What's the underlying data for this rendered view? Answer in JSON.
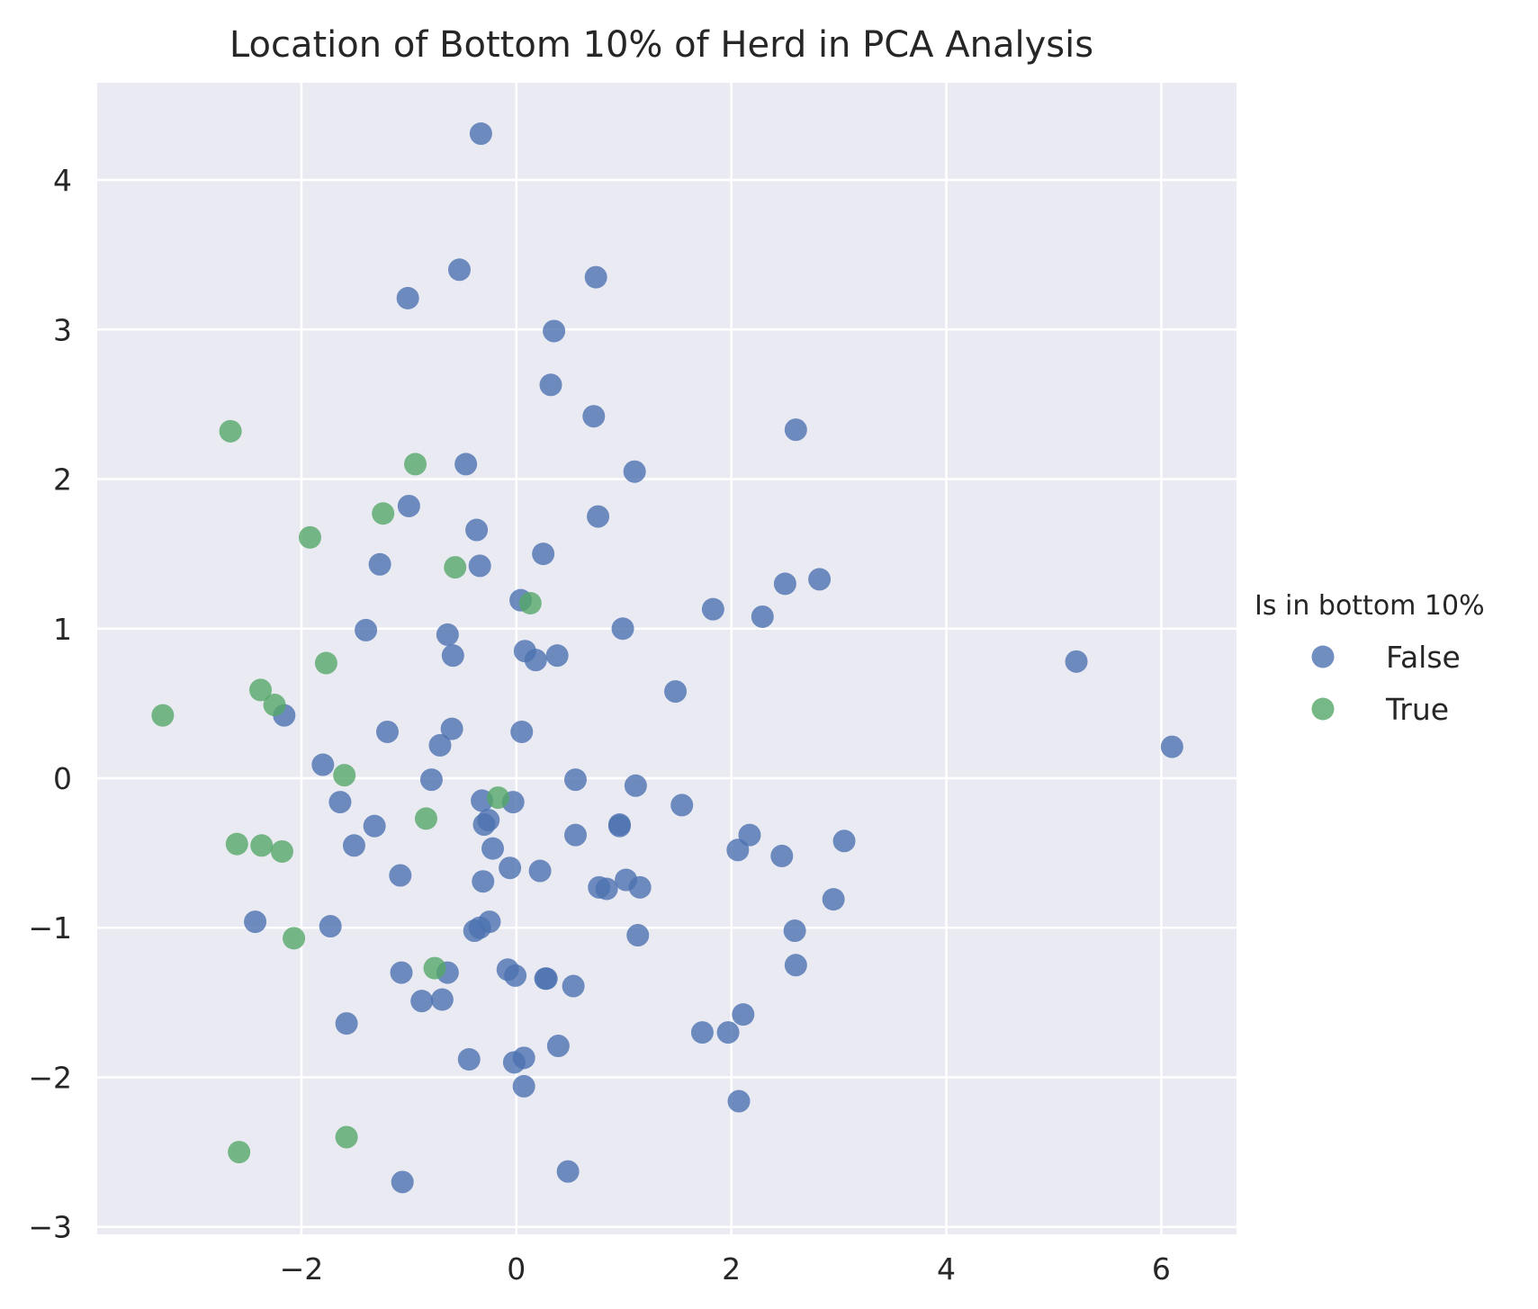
{
  "chart_data": {
    "type": "scatter",
    "title": "Location of Bottom 10% of Herd in PCA Analysis",
    "xlabel": "",
    "ylabel": "",
    "xlim": [
      -3.9,
      6.7
    ],
    "ylim": [
      -3.05,
      4.65
    ],
    "xticks": [
      -2,
      0,
      2,
      4,
      6
    ],
    "yticks": [
      -3,
      -2,
      -1,
      0,
      1,
      2,
      3,
      4
    ],
    "grid": true,
    "legend": {
      "title": "Is in bottom 10%",
      "position": "right"
    },
    "series": [
      {
        "name": "False",
        "color": "#4c72b0",
        "points": [
          [
            -0.33,
            4.31
          ],
          [
            -0.53,
            3.4
          ],
          [
            0.74,
            3.35
          ],
          [
            -1.01,
            3.21
          ],
          [
            0.35,
            2.99
          ],
          [
            0.32,
            2.63
          ],
          [
            0.72,
            2.42
          ],
          [
            2.6,
            2.33
          ],
          [
            -0.47,
            2.1
          ],
          [
            1.1,
            2.05
          ],
          [
            -1.0,
            1.82
          ],
          [
            0.76,
            1.75
          ],
          [
            -0.37,
            1.66
          ],
          [
            0.25,
            1.5
          ],
          [
            -1.27,
            1.43
          ],
          [
            -0.34,
            1.42
          ],
          [
            2.82,
            1.33
          ],
          [
            2.5,
            1.3
          ],
          [
            1.83,
            1.13
          ],
          [
            0.04,
            1.19
          ],
          [
            2.29,
            1.08
          ],
          [
            -1.4,
            0.99
          ],
          [
            -0.64,
            0.96
          ],
          [
            0.99,
            1.0
          ],
          [
            0.08,
            0.85
          ],
          [
            0.38,
            0.82
          ],
          [
            0.18,
            0.79
          ],
          [
            -0.59,
            0.82
          ],
          [
            5.21,
            0.78
          ],
          [
            1.48,
            0.58
          ],
          [
            -2.16,
            0.42
          ],
          [
            -1.2,
            0.31
          ],
          [
            -0.6,
            0.33
          ],
          [
            0.05,
            0.31
          ],
          [
            -0.71,
            0.22
          ],
          [
            6.1,
            0.21
          ],
          [
            -1.8,
            0.09
          ],
          [
            -0.79,
            -0.01
          ],
          [
            0.55,
            -0.01
          ],
          [
            1.11,
            -0.05
          ],
          [
            -1.64,
            -0.16
          ],
          [
            -0.32,
            -0.15
          ],
          [
            -0.03,
            -0.16
          ],
          [
            1.54,
            -0.18
          ],
          [
            -1.32,
            -0.32
          ],
          [
            -0.26,
            -0.28
          ],
          [
            -0.3,
            -0.31
          ],
          [
            0.96,
            -0.31
          ],
          [
            0.96,
            -0.32
          ],
          [
            0.55,
            -0.38
          ],
          [
            2.17,
            -0.38
          ],
          [
            3.05,
            -0.42
          ],
          [
            -1.51,
            -0.45
          ],
          [
            -0.22,
            -0.47
          ],
          [
            2.06,
            -0.48
          ],
          [
            2.47,
            -0.52
          ],
          [
            -0.06,
            -0.6
          ],
          [
            0.22,
            -0.62
          ],
          [
            -1.08,
            -0.65
          ],
          [
            -0.31,
            -0.69
          ],
          [
            1.02,
            -0.68
          ],
          [
            0.77,
            -0.73
          ],
          [
            0.84,
            -0.74
          ],
          [
            1.15,
            -0.73
          ],
          [
            2.95,
            -0.81
          ],
          [
            -2.43,
            -0.96
          ],
          [
            -0.25,
            -0.96
          ],
          [
            -0.34,
            -1.0
          ],
          [
            -0.39,
            -1.02
          ],
          [
            -1.73,
            -0.99
          ],
          [
            2.59,
            -1.02
          ],
          [
            1.13,
            -1.05
          ],
          [
            2.6,
            -1.25
          ],
          [
            -1.07,
            -1.3
          ],
          [
            -0.08,
            -1.28
          ],
          [
            -0.64,
            -1.3
          ],
          [
            -0.01,
            -1.32
          ],
          [
            0.27,
            -1.34
          ],
          [
            0.28,
            -1.34
          ],
          [
            0.53,
            -1.39
          ],
          [
            -0.88,
            -1.49
          ],
          [
            -0.69,
            -1.48
          ],
          [
            2.11,
            -1.58
          ],
          [
            -1.58,
            -1.64
          ],
          [
            1.73,
            -1.7
          ],
          [
            1.97,
            -1.7
          ],
          [
            0.39,
            -1.79
          ],
          [
            -0.44,
            -1.88
          ],
          [
            -0.02,
            -1.9
          ],
          [
            0.07,
            -1.87
          ],
          [
            0.07,
            -2.06
          ],
          [
            2.07,
            -2.16
          ],
          [
            0.48,
            -2.63
          ],
          [
            -1.06,
            -2.7
          ]
        ]
      },
      {
        "name": "True",
        "color": "#55a868",
        "points": [
          [
            -2.66,
            2.32
          ],
          [
            -0.94,
            2.1
          ],
          [
            -1.24,
            1.77
          ],
          [
            -1.92,
            1.61
          ],
          [
            -0.57,
            1.41
          ],
          [
            0.13,
            1.17
          ],
          [
            -1.77,
            0.77
          ],
          [
            -2.38,
            0.59
          ],
          [
            -2.25,
            0.49
          ],
          [
            -3.29,
            0.42
          ],
          [
            -1.6,
            0.02
          ],
          [
            -0.17,
            -0.13
          ],
          [
            -0.84,
            -0.27
          ],
          [
            -2.6,
            -0.44
          ],
          [
            -2.37,
            -0.45
          ],
          [
            -2.18,
            -0.49
          ],
          [
            -2.07,
            -1.07
          ],
          [
            -0.76,
            -1.27
          ],
          [
            -1.58,
            -2.4
          ],
          [
            -2.58,
            -2.5
          ]
        ]
      }
    ]
  }
}
